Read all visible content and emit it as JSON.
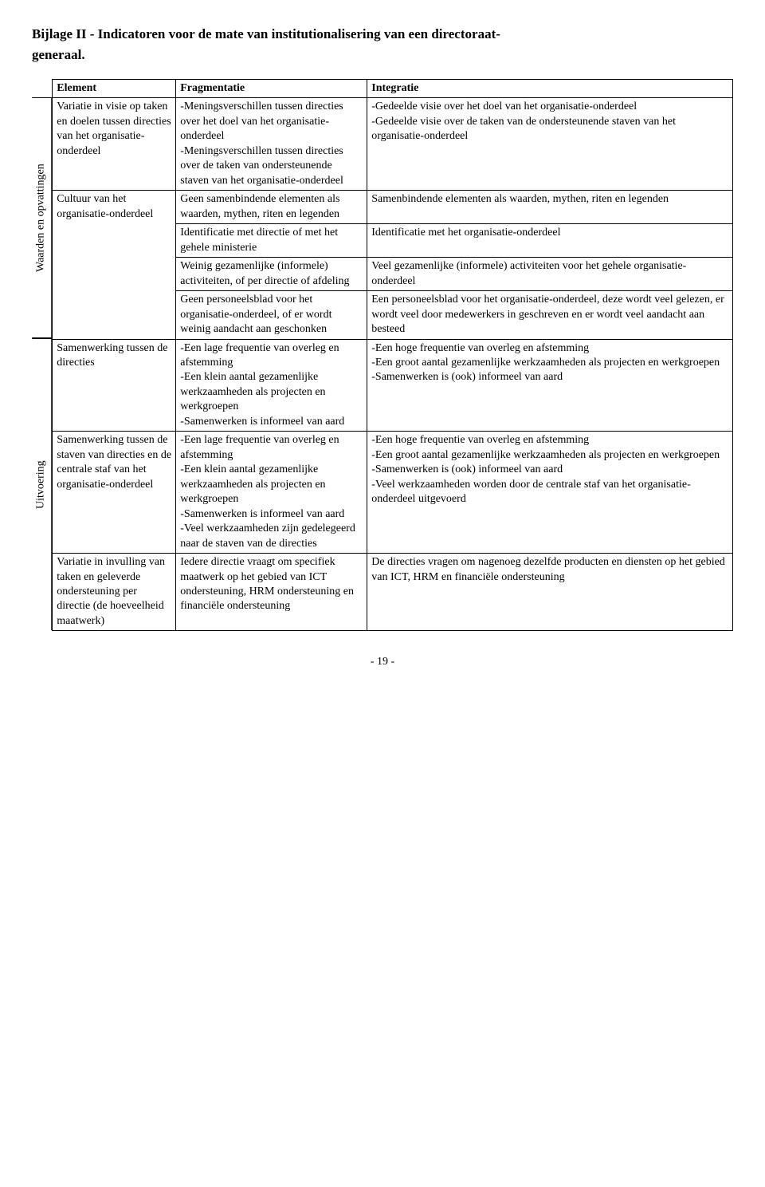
{
  "title_line1": "Bijlage II - Indicatoren voor de mate van institutionalisering van een directoraat-",
  "title_line2": "generaal.",
  "vertical_labels": {
    "waarden": "Waarden en opvattingen",
    "uitvoering": "Uitvoering"
  },
  "headers": {
    "element": "Element",
    "fragmentatie": "Fragmentatie",
    "integratie": "Integratie"
  },
  "rows": {
    "r1": {
      "element": "Variatie in visie op taken en doelen tussen directies van het organisatie-onderdeel",
      "frag": "-Meningsverschillen tussen directies over het doel van het organisatie-onderdeel\n-Meningsverschillen tussen directies over de taken van ondersteunende staven van het organisatie-onderdeel",
      "integ": "-Gedeelde visie over het doel van het organisatie-onderdeel\n-Gedeelde visie over de taken van de ondersteunende staven van het organisatie-onderdeel"
    },
    "r2": {
      "element": "Cultuur van het organisatie-onderdeel",
      "frag_a": "Geen samenbindende elementen als waarden, mythen, riten en legenden",
      "integ_a": "Samenbindende elementen als waarden, mythen, riten en legenden",
      "frag_b": "Identificatie met directie of met het gehele ministerie",
      "integ_b": "Identificatie met het organisatie-onderdeel",
      "frag_c": "Weinig gezamenlijke (informele) activiteiten, of per directie of afdeling",
      "integ_c": "Veel gezamenlijke (informele) activiteiten voor het gehele organisatie-onderdeel",
      "frag_d": "Geen personeelsblad voor het organisatie-onderdeel, of er wordt weinig aandacht aan geschonken",
      "integ_d": "Een personeelsblad voor het organisatie-onderdeel, deze wordt veel gelezen, er wordt veel door medewerkers in geschreven en er wordt veel aandacht aan besteed"
    },
    "r3": {
      "element": "Samenwerking tussen de directies",
      "frag": "-Een lage frequentie van overleg en afstemming\n-Een klein aantal gezamenlijke werkzaamheden als projecten en werkgroepen\n-Samenwerken is informeel van aard",
      "integ": "-Een hoge frequentie van overleg en afstemming\n-Een groot aantal gezamenlijke werkzaamheden als projecten en werkgroepen\n-Samenwerken is (ook) informeel van aard"
    },
    "r4": {
      "element": "Samenwerking tussen de staven van directies en de centrale staf van het organisatie-onderdeel",
      "frag": "-Een lage frequentie van overleg en afstemming\n-Een klein aantal gezamenlijke werkzaamheden als projecten en werkgroepen\n-Samenwerken is informeel van aard\n-Veel werkzaamheden zijn gedelegeerd naar de staven van de directies",
      "integ": "-Een hoge frequentie van overleg en afstemming\n-Een groot aantal gezamenlijke werkzaamheden als projecten en werkgroepen\n-Samenwerken is (ook) informeel van aard\n-Veel werkzaamheden worden door de centrale staf van het organisatie-onderdeel uitgevoerd"
    },
    "r5": {
      "element": "Variatie in invulling van taken en geleverde ondersteuning per directie (de hoeveelheid maatwerk)",
      "frag": "Iedere directie vraagt om specifiek maatwerk op het gebied van ICT ondersteuning, HRM ondersteuning en financiële ondersteuning",
      "integ": "De directies vragen om nagenoeg dezelfde producten en diensten op het gebied van ICT, HRM en financiële ondersteuning"
    }
  },
  "page_number": "- 19 -"
}
